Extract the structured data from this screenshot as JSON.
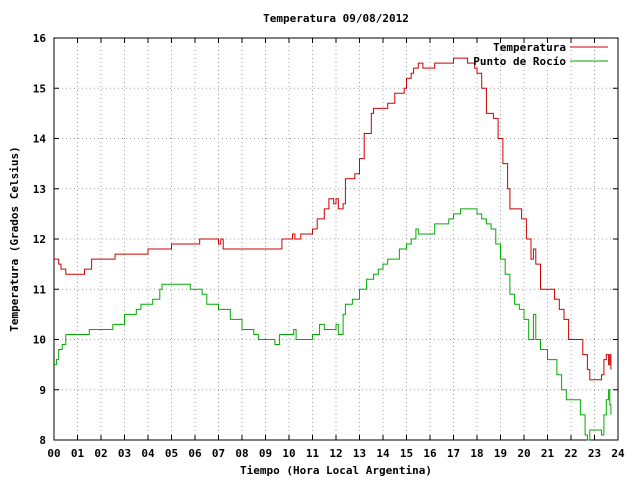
{
  "chart_data": {
    "type": "line",
    "title": "Temperatura 09/08/2012",
    "xlabel": "Tiempo (Hora Local Argentina)",
    "ylabel": "Temperatura (Grados Celsius)",
    "xlim": [
      0,
      24
    ],
    "ylim": [
      8,
      16
    ],
    "xticks": [
      0,
      1,
      2,
      3,
      4,
      5,
      6,
      7,
      8,
      9,
      10,
      11,
      12,
      13,
      14,
      15,
      16,
      17,
      18,
      19,
      20,
      21,
      22,
      23,
      24
    ],
    "xtick_labels": [
      "00",
      "01",
      "02",
      "03",
      "04",
      "05",
      "06",
      "07",
      "08",
      "09",
      "10",
      "11",
      "12",
      "13",
      "14",
      "15",
      "16",
      "17",
      "18",
      "19",
      "20",
      "21",
      "22",
      "23",
      "24"
    ],
    "yticks": [
      8,
      9,
      10,
      11,
      12,
      13,
      14,
      15,
      16
    ],
    "ytick_labels": [
      "8",
      "9",
      "10",
      "11",
      "12",
      "13",
      "14",
      "15",
      "16"
    ],
    "grid": true,
    "legend_position": "top-right",
    "series": [
      {
        "name": "Temperatura",
        "color": "#cc0000",
        "points": [
          [
            0.0,
            11.6
          ],
          [
            0.2,
            11.5
          ],
          [
            0.3,
            11.4
          ],
          [
            0.5,
            11.3
          ],
          [
            1.0,
            11.3
          ],
          [
            1.3,
            11.4
          ],
          [
            1.6,
            11.6
          ],
          [
            2.4,
            11.6
          ],
          [
            2.6,
            11.7
          ],
          [
            3.5,
            11.7
          ],
          [
            4.0,
            11.8
          ],
          [
            4.8,
            11.8
          ],
          [
            5.0,
            11.9
          ],
          [
            6.0,
            11.9
          ],
          [
            6.2,
            12.0
          ],
          [
            6.9,
            12.0
          ],
          [
            7.0,
            11.9
          ],
          [
            7.1,
            12.0
          ],
          [
            7.2,
            11.8
          ],
          [
            7.5,
            11.8
          ],
          [
            9.5,
            11.8
          ],
          [
            9.7,
            12.0
          ],
          [
            10.0,
            12.0
          ],
          [
            10.15,
            12.1
          ],
          [
            10.25,
            12.0
          ],
          [
            10.5,
            12.1
          ],
          [
            11.0,
            12.2
          ],
          [
            11.2,
            12.4
          ],
          [
            11.5,
            12.6
          ],
          [
            11.7,
            12.8
          ],
          [
            11.9,
            12.7
          ],
          [
            12.0,
            12.8
          ],
          [
            12.1,
            12.6
          ],
          [
            12.3,
            12.7
          ],
          [
            12.4,
            13.2
          ],
          [
            12.8,
            13.3
          ],
          [
            13.0,
            13.6
          ],
          [
            13.2,
            14.1
          ],
          [
            13.5,
            14.5
          ],
          [
            13.6,
            14.6
          ],
          [
            14.0,
            14.6
          ],
          [
            14.2,
            14.7
          ],
          [
            14.5,
            14.9
          ],
          [
            14.9,
            15.0
          ],
          [
            15.0,
            15.2
          ],
          [
            15.2,
            15.3
          ],
          [
            15.3,
            15.4
          ],
          [
            15.5,
            15.5
          ],
          [
            15.7,
            15.4
          ],
          [
            15.8,
            15.4
          ],
          [
            16.0,
            15.4
          ],
          [
            16.2,
            15.5
          ],
          [
            16.6,
            15.5
          ],
          [
            17.0,
            15.6
          ],
          [
            17.4,
            15.6
          ],
          [
            17.6,
            15.5
          ],
          [
            17.9,
            15.4
          ],
          [
            18.0,
            15.3
          ],
          [
            18.2,
            15.0
          ],
          [
            18.4,
            14.5
          ],
          [
            18.7,
            14.4
          ],
          [
            18.9,
            14.0
          ],
          [
            19.1,
            13.5
          ],
          [
            19.3,
            13.0
          ],
          [
            19.4,
            12.6
          ],
          [
            19.8,
            12.6
          ],
          [
            19.9,
            12.4
          ],
          [
            20.1,
            12.0
          ],
          [
            20.3,
            11.6
          ],
          [
            20.4,
            11.8
          ],
          [
            20.5,
            11.5
          ],
          [
            20.7,
            11.0
          ],
          [
            21.2,
            11.0
          ],
          [
            21.3,
            10.8
          ],
          [
            21.5,
            10.6
          ],
          [
            21.7,
            10.4
          ],
          [
            21.9,
            10.0
          ],
          [
            22.3,
            10.0
          ],
          [
            22.5,
            9.7
          ],
          [
            22.7,
            9.4
          ],
          [
            22.8,
            9.2
          ],
          [
            23.0,
            9.2
          ],
          [
            23.2,
            9.2
          ],
          [
            23.3,
            9.3
          ],
          [
            23.4,
            9.6
          ],
          [
            23.5,
            9.7
          ],
          [
            23.6,
            9.5
          ],
          [
            23.65,
            9.7
          ],
          [
            23.7,
            9.4
          ]
        ]
      },
      {
        "name": "Punto de Rocío",
        "color": "#00aa00",
        "points": [
          [
            0.0,
            9.5
          ],
          [
            0.1,
            9.6
          ],
          [
            0.2,
            9.8
          ],
          [
            0.35,
            9.9
          ],
          [
            0.5,
            10.1
          ],
          [
            1.0,
            10.1
          ],
          [
            1.5,
            10.2
          ],
          [
            2.2,
            10.2
          ],
          [
            2.5,
            10.3
          ],
          [
            3.0,
            10.5
          ],
          [
            3.5,
            10.6
          ],
          [
            3.7,
            10.7
          ],
          [
            4.2,
            10.8
          ],
          [
            4.5,
            11.0
          ],
          [
            4.6,
            11.1
          ],
          [
            5.5,
            11.1
          ],
          [
            5.8,
            11.0
          ],
          [
            6.0,
            11.0
          ],
          [
            6.3,
            10.9
          ],
          [
            6.5,
            10.7
          ],
          [
            7.0,
            10.6
          ],
          [
            7.5,
            10.4
          ],
          [
            8.0,
            10.2
          ],
          [
            8.5,
            10.1
          ],
          [
            8.7,
            10.0
          ],
          [
            9.3,
            10.0
          ],
          [
            9.4,
            9.9
          ],
          [
            9.6,
            10.1
          ],
          [
            10.0,
            10.1
          ],
          [
            10.2,
            10.2
          ],
          [
            10.3,
            10.0
          ],
          [
            11.0,
            10.1
          ],
          [
            11.3,
            10.3
          ],
          [
            11.5,
            10.2
          ],
          [
            11.8,
            10.2
          ],
          [
            12.0,
            10.3
          ],
          [
            12.1,
            10.1
          ],
          [
            12.3,
            10.5
          ],
          [
            12.4,
            10.7
          ],
          [
            12.7,
            10.8
          ],
          [
            13.0,
            11.0
          ],
          [
            13.3,
            11.2
          ],
          [
            13.6,
            11.3
          ],
          [
            13.8,
            11.4
          ],
          [
            14.0,
            11.5
          ],
          [
            14.2,
            11.6
          ],
          [
            14.5,
            11.6
          ],
          [
            14.7,
            11.8
          ],
          [
            15.0,
            11.9
          ],
          [
            15.2,
            12.0
          ],
          [
            15.4,
            12.2
          ],
          [
            15.5,
            12.1
          ],
          [
            16.0,
            12.1
          ],
          [
            16.2,
            12.3
          ],
          [
            16.5,
            12.3
          ],
          [
            16.8,
            12.4
          ],
          [
            17.0,
            12.5
          ],
          [
            17.3,
            12.6
          ],
          [
            17.5,
            12.6
          ],
          [
            17.7,
            12.6
          ],
          [
            18.0,
            12.5
          ],
          [
            18.2,
            12.4
          ],
          [
            18.4,
            12.3
          ],
          [
            18.6,
            12.2
          ],
          [
            18.8,
            11.9
          ],
          [
            19.0,
            11.6
          ],
          [
            19.2,
            11.3
          ],
          [
            19.4,
            10.9
          ],
          [
            19.6,
            10.7
          ],
          [
            19.8,
            10.6
          ],
          [
            20.0,
            10.4
          ],
          [
            20.2,
            10.0
          ],
          [
            20.4,
            10.5
          ],
          [
            20.5,
            10.0
          ],
          [
            20.7,
            9.8
          ],
          [
            21.0,
            9.6
          ],
          [
            21.2,
            9.6
          ],
          [
            21.4,
            9.3
          ],
          [
            21.6,
            9.0
          ],
          [
            21.8,
            8.8
          ],
          [
            22.2,
            8.8
          ],
          [
            22.4,
            8.5
          ],
          [
            22.6,
            8.1
          ],
          [
            22.7,
            8.0
          ],
          [
            22.8,
            8.2
          ],
          [
            23.2,
            8.2
          ],
          [
            23.3,
            8.1
          ],
          [
            23.4,
            8.5
          ],
          [
            23.5,
            8.8
          ],
          [
            23.6,
            9.0
          ],
          [
            23.65,
            8.7
          ],
          [
            23.7,
            8.5
          ]
        ]
      }
    ]
  }
}
